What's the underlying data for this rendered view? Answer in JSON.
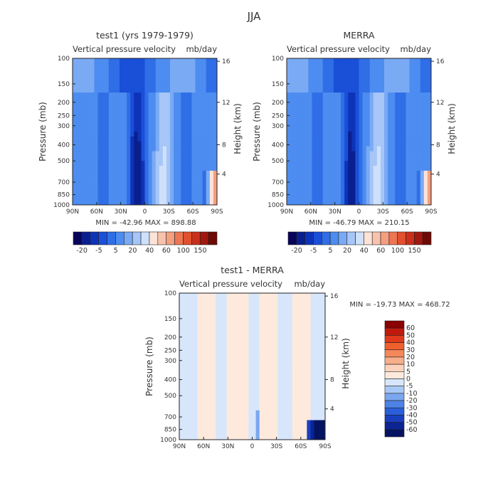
{
  "figure_title": "JJA",
  "chart_data": [
    {
      "type": "heatmap",
      "title": "test1 (yrs 1979-1979)",
      "subtitle_left": "Vertical pressure velocity",
      "subtitle_right": "mb/day",
      "ylabel": "Pressure (mb)",
      "y2label": "Height (km)",
      "x_ticks": [
        "90N",
        "60N",
        "30N",
        "0",
        "30S",
        "60S",
        "90S"
      ],
      "y_ticks": [
        "100",
        "150",
        "200",
        "250",
        "300",
        "400",
        "500",
        "700",
        "850",
        "1000"
      ],
      "y2_ticks": [
        "16",
        "12",
        "8",
        "4"
      ],
      "stats": "MIN = -42.96   MAX = 898.88",
      "colorbar": {
        "labels": [
          "-20",
          "-5",
          "5",
          "20",
          "40",
          "60",
          "100",
          "150"
        ],
        "colors": [
          "#08045a",
          "#0a1f8f",
          "#0d33b8",
          "#1a4fd8",
          "#2f6ee6",
          "#4d8cf0",
          "#7aaaf4",
          "#a6c6f8",
          "#cfe0fb",
          "#fbe3d8",
          "#f8c3ad",
          "#f49f80",
          "#ee7653",
          "#e1502f",
          "#c9301b",
          "#a0180f",
          "#6e0a05"
        ]
      }
    },
    {
      "type": "heatmap",
      "title": "MERRA",
      "subtitle_left": "Vertical pressure velocity",
      "subtitle_right": "mb/day",
      "ylabel": "Pressure (mb)",
      "y2label": "Height (km)",
      "x_ticks": [
        "90N",
        "60N",
        "30N",
        "0",
        "30S",
        "60S",
        "90S"
      ],
      "y_ticks": [
        "100",
        "150",
        "200",
        "250",
        "300",
        "400",
        "500",
        "700",
        "850",
        "1000"
      ],
      "y2_ticks": [
        "16",
        "12",
        "8",
        "4"
      ],
      "stats": "MIN = -46.79   MAX = 210.15",
      "colorbar": {
        "labels": [
          "-20",
          "-5",
          "5",
          "20",
          "40",
          "60",
          "100",
          "150"
        ],
        "colors": [
          "#08045a",
          "#0a1f8f",
          "#0d33b8",
          "#1a4fd8",
          "#2f6ee6",
          "#4d8cf0",
          "#7aaaf4",
          "#a6c6f8",
          "#cfe0fb",
          "#fbe3d8",
          "#f8c3ad",
          "#f49f80",
          "#ee7653",
          "#e1502f",
          "#c9301b",
          "#a0180f",
          "#6e0a05"
        ]
      }
    },
    {
      "type": "heatmap",
      "title": "test1 - MERRA",
      "subtitle_left": "Vertical pressure velocity",
      "subtitle_right": "mb/day",
      "ylabel": "Pressure (mb)",
      "y2label": "Height (km)",
      "x_ticks": [
        "90N",
        "60N",
        "30N",
        "0",
        "30S",
        "60S",
        "90S"
      ],
      "y_ticks": [
        "100",
        "150",
        "200",
        "250",
        "300",
        "400",
        "500",
        "700",
        "850",
        "1000"
      ],
      "y2_ticks": [
        "16",
        "12",
        "8",
        "4"
      ],
      "stats": "MIN = -19.73   MAX = 468.72",
      "colorbar": {
        "labels": [
          "60",
          "50",
          "40",
          "30",
          "20",
          "10",
          "5",
          "0",
          "-5",
          "-10",
          "-20",
          "-30",
          "-40",
          "-50",
          "-60"
        ],
        "colors": [
          "#8b0000",
          "#c01a0c",
          "#e0391c",
          "#f0602f",
          "#f4885a",
          "#f7ae8a",
          "#fbd3bd",
          "#fdeadd",
          "#d7e6fb",
          "#a9c8f6",
          "#7ba7ef",
          "#4d83e6",
          "#2a5fd9",
          "#1a3fbf",
          "#0c2394",
          "#061360"
        ]
      }
    }
  ]
}
